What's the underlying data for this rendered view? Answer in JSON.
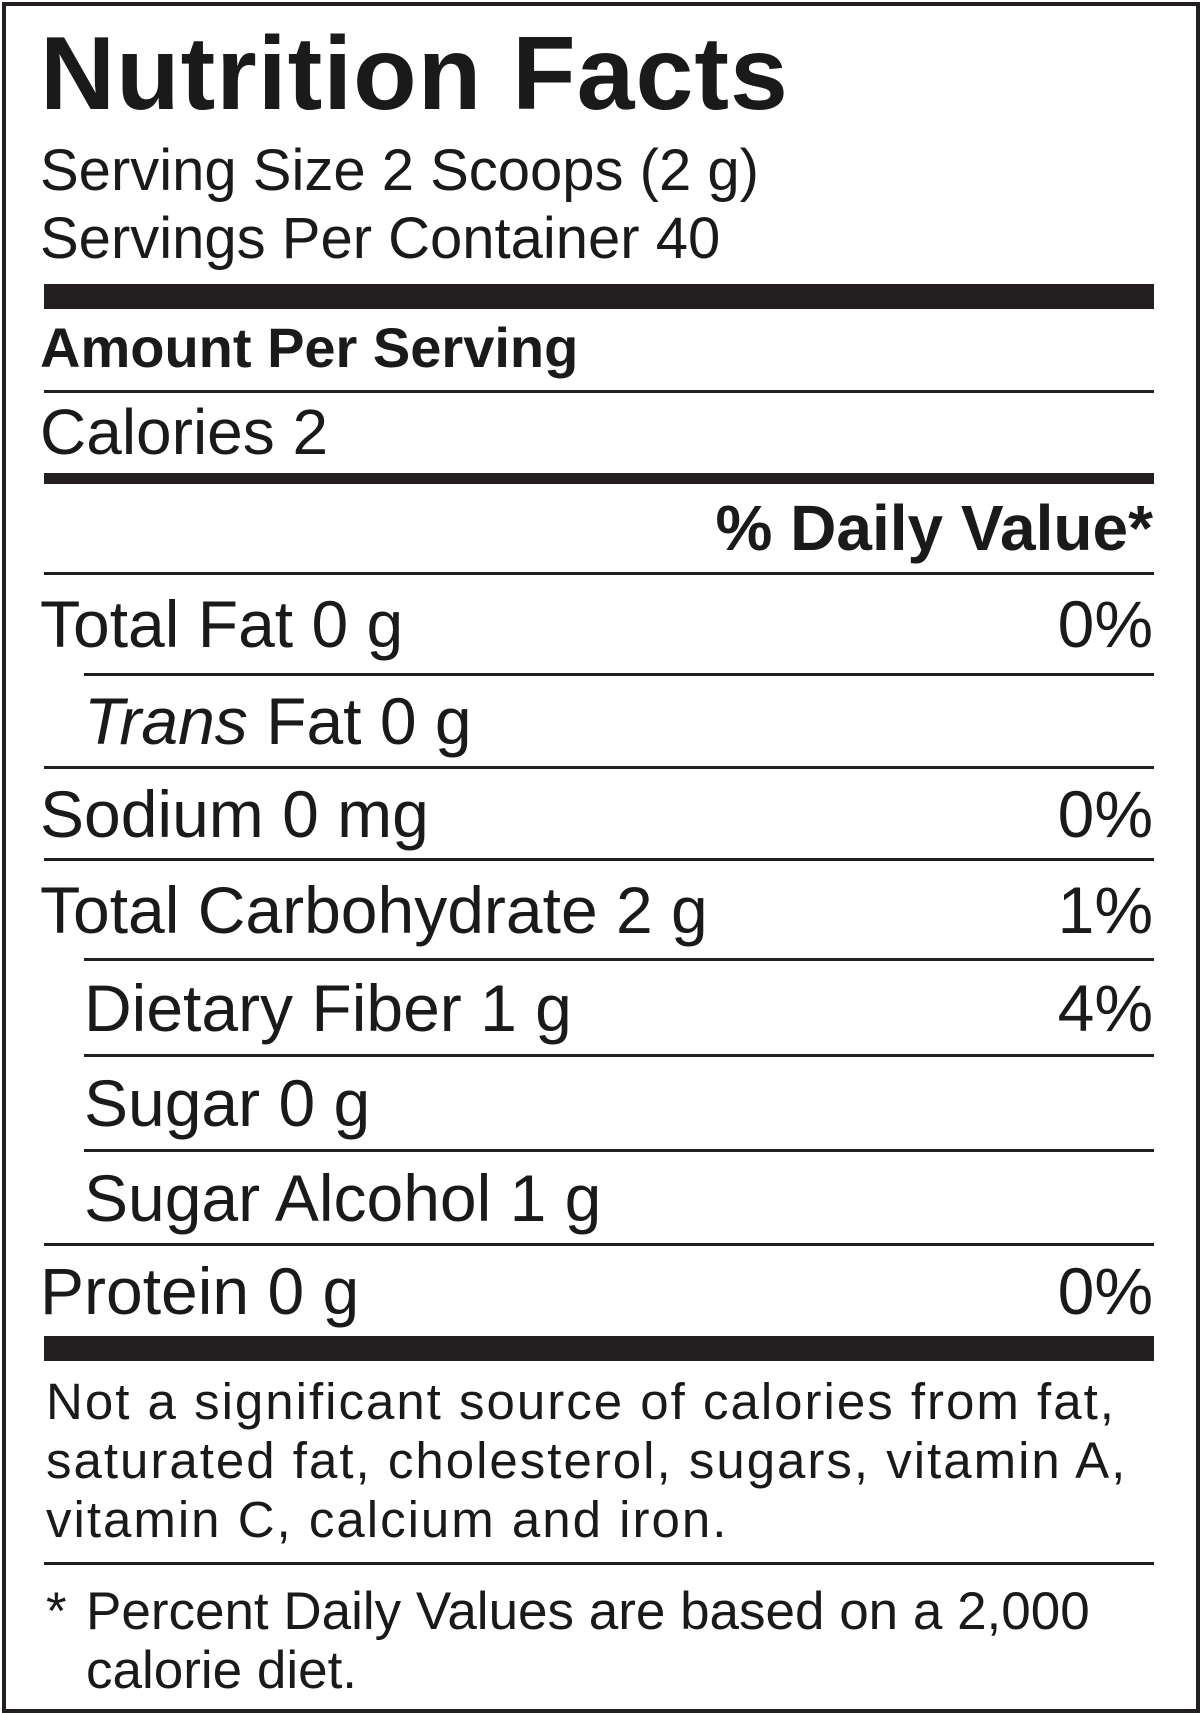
{
  "label": {
    "title": "Nutrition Facts",
    "serving_size": "Serving Size 2 Scoops (2 g)",
    "servings_per_container": "Servings Per Container 40",
    "amount_per_serving": "Amount Per Serving",
    "calories": "Calories 2",
    "daily_value_header": "% Daily Value*",
    "rows": [
      {
        "prefix": "",
        "label": "Total Fat 0 g",
        "dv": "0%"
      },
      {
        "prefix": "Trans",
        "label": " Fat 0 g",
        "dv": ""
      },
      {
        "prefix": "",
        "label": "Sodium 0 mg",
        "dv": "0%"
      },
      {
        "prefix": "",
        "label": "Total Carbohydrate 2 g",
        "dv": "1%"
      },
      {
        "prefix": "",
        "label": "Dietary Fiber 1 g",
        "dv": "4%"
      },
      {
        "prefix": "",
        "label": "Sugar 0 g",
        "dv": ""
      },
      {
        "prefix": "",
        "label": "Sugar Alcohol 1 g",
        "dv": ""
      },
      {
        "prefix": "",
        "label": "Protein 0 g",
        "dv": "0%"
      }
    ],
    "footnote": "Not a significant source of calories from fat, saturated fat, cholesterol, sugars, vitamin A, vitamin C, calcium and iron.",
    "asterisk": "*",
    "dv_note": "Percent Daily Values are based on a 2,000 calorie diet."
  }
}
